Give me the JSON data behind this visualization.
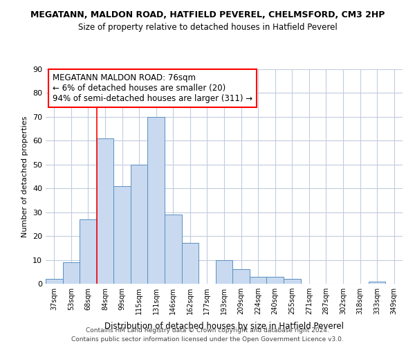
{
  "title": "MEGATANN, MALDON ROAD, HATFIELD PEVEREL, CHELMSFORD, CM3 2HP",
  "subtitle": "Size of property relative to detached houses in Hatfield Peverel",
  "xlabel": "Distribution of detached houses by size in Hatfield Peverel",
  "ylabel": "Number of detached properties",
  "bar_labels": [
    "37sqm",
    "53sqm",
    "68sqm",
    "84sqm",
    "99sqm",
    "115sqm",
    "131sqm",
    "146sqm",
    "162sqm",
    "177sqm",
    "193sqm",
    "209sqm",
    "224sqm",
    "240sqm",
    "255sqm",
    "271sqm",
    "287sqm",
    "302sqm",
    "318sqm",
    "333sqm",
    "349sqm"
  ],
  "bar_values": [
    2,
    9,
    27,
    61,
    41,
    50,
    70,
    29,
    17,
    0,
    10,
    6,
    3,
    3,
    2,
    0,
    0,
    0,
    0,
    1,
    0
  ],
  "bar_color": "#c8d9f0",
  "bar_edge_color": "#5a8fc0",
  "ylim": [
    0,
    90
  ],
  "yticks": [
    0,
    10,
    20,
    30,
    40,
    50,
    60,
    70,
    80,
    90
  ],
  "red_line_x": 2.5,
  "annotation_line1": "MEGATANN MALDON ROAD: 76sqm",
  "annotation_line2": "← 6% of detached houses are smaller (20)",
  "annotation_line3": "94% of semi-detached houses are larger (311) →",
  "footer_line1": "Contains HM Land Registry data © Crown copyright and database right 2024.",
  "footer_line2": "Contains public sector information licensed under the Open Government Licence v3.0.",
  "bg_color": "#ffffff",
  "grid_color": "#c0ccdd"
}
